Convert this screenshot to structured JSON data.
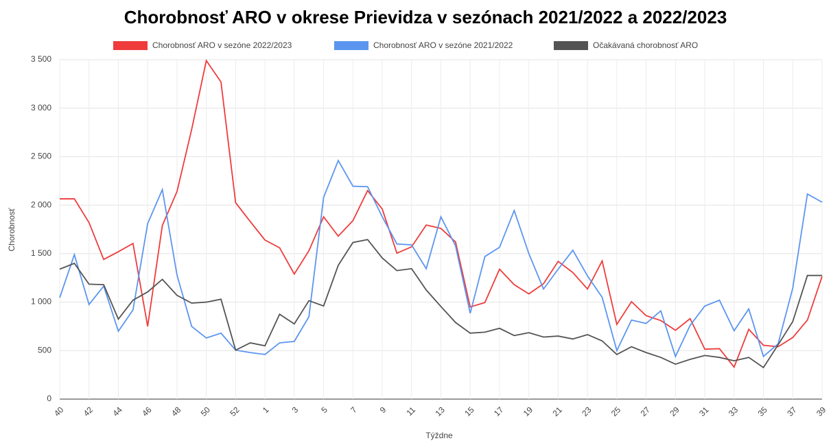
{
  "chart_data": {
    "type": "line",
    "title": "Chorobnosť ARO v okrese Prievidza v sezónach 2021/2022 a 2022/2023",
    "x_label": "Týždne",
    "y_label": "Chorobnosť",
    "categories": [
      "40",
      null,
      "42",
      null,
      "44",
      null,
      "46",
      null,
      "48",
      null,
      "50",
      null,
      "52",
      null,
      "1",
      null,
      "3",
      null,
      "5",
      null,
      "7",
      null,
      "9",
      null,
      "11",
      null,
      "13",
      null,
      "15",
      null,
      "17",
      null,
      "19",
      null,
      "21",
      null,
      "23",
      null,
      "25",
      null,
      "27",
      null,
      "29",
      null,
      "31",
      null,
      "33",
      null,
      "35",
      null,
      "37",
      null,
      "39"
    ],
    "series": [
      {
        "name": "Chorobnosť ARO v sezóne 2022/2023",
        "color": "#ef3b3b",
        "values": [
          2065,
          2065,
          1820,
          1440,
          1520,
          1605,
          750,
          1790,
          2140,
          2780,
          3490,
          3270,
          2025,
          1830,
          1640,
          1560,
          1290,
          1530,
          1880,
          1680,
          1840,
          2150,
          1960,
          1505,
          1570,
          1795,
          1760,
          1620,
          950,
          995,
          1340,
          1180,
          1085,
          1190,
          1420,
          1305,
          1135,
          1425,
          770,
          1005,
          860,
          810,
          710,
          830,
          515,
          520,
          330,
          720,
          555,
          540,
          635,
          815,
          1265
        ]
      },
      {
        "name": "Chorobnosť ARO v sezóne 2021/2022",
        "color": "#5b95f0",
        "values": [
          1045,
          1490,
          975,
          1165,
          700,
          920,
          1810,
          2160,
          1280,
          750,
          630,
          680,
          505,
          480,
          460,
          580,
          595,
          850,
          2080,
          2460,
          2195,
          2190,
          1880,
          1600,
          1590,
          1345,
          1880,
          1580,
          885,
          1470,
          1565,
          1945,
          1500,
          1135,
          1340,
          1535,
          1270,
          1050,
          500,
          815,
          780,
          910,
          440,
          760,
          960,
          1020,
          705,
          930,
          440,
          570,
          1145,
          2115,
          2030
        ]
      },
      {
        "name": "Očakávaná chorobnosť ARO",
        "color": "#545454",
        "values": [
          1340,
          1400,
          1185,
          1180,
          825,
          1020,
          1105,
          1235,
          1070,
          990,
          1000,
          1030,
          505,
          580,
          550,
          875,
          775,
          1015,
          960,
          1380,
          1615,
          1645,
          1455,
          1325,
          1345,
          1125,
          955,
          790,
          680,
          690,
          730,
          655,
          685,
          640,
          650,
          620,
          665,
          600,
          460,
          540,
          480,
          430,
          360,
          410,
          450,
          430,
          395,
          430,
          325,
          560,
          800,
          1275,
          1275
        ]
      }
    ],
    "ylim": [
      0,
      3500
    ],
    "yticks": [
      0,
      500,
      {
        "value": 1000,
        "label": "1 000"
      },
      {
        "value": 1500,
        "label": "1 500"
      },
      {
        "value": 2000,
        "label": "2 000"
      },
      {
        "value": 2500,
        "label": "2 500"
      },
      {
        "value": 3000,
        "label": "3 000"
      },
      {
        "value": 3500,
        "label": "3 500"
      }
    ],
    "grid": true
  }
}
